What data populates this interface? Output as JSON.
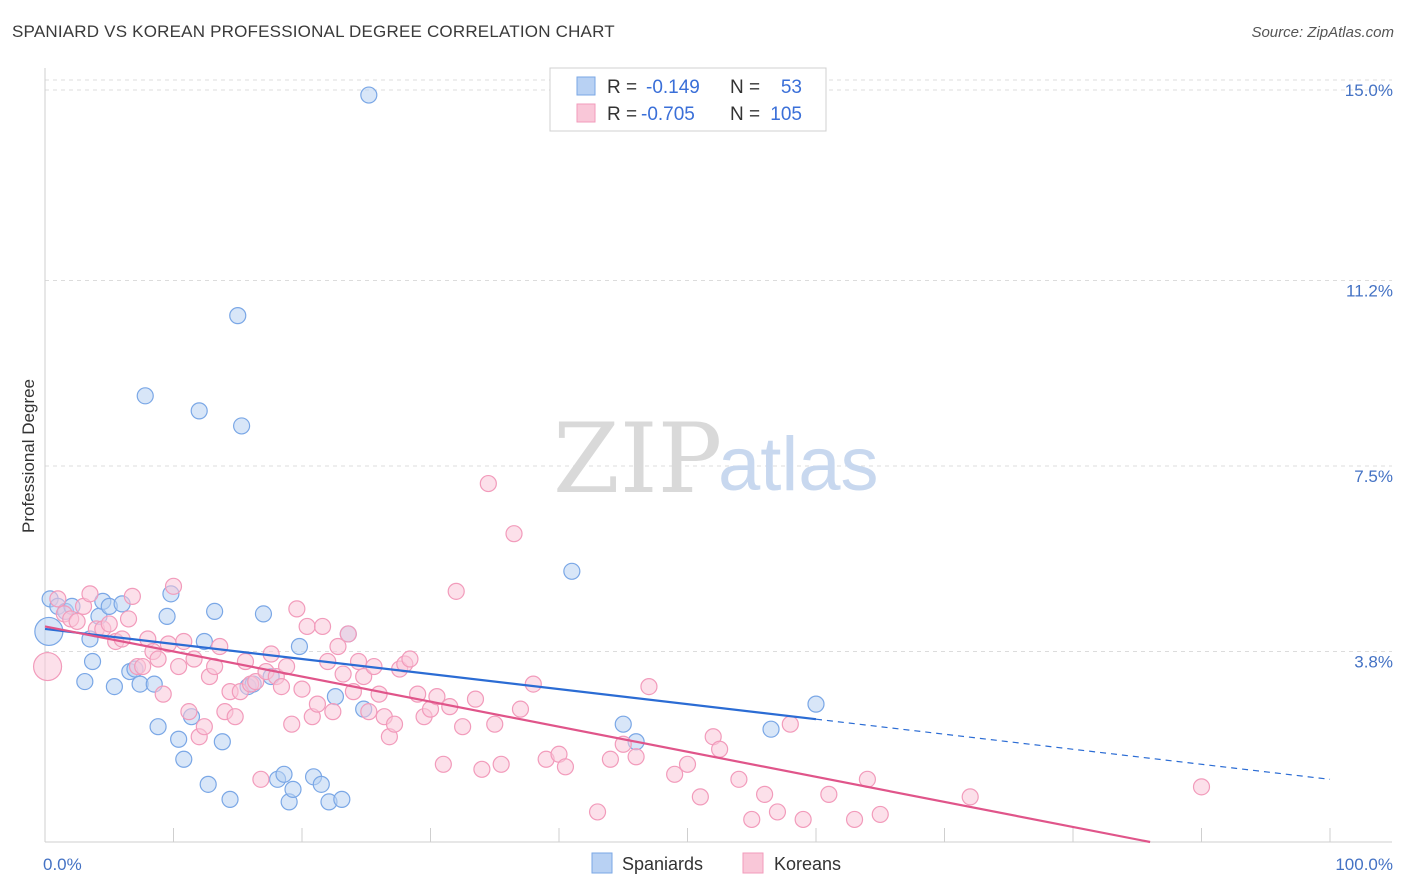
{
  "header": {
    "title": "SPANIARD VS KOREAN PROFESSIONAL DEGREE CORRELATION CHART",
    "source": "Source: ZipAtlas.com"
  },
  "watermark": {
    "zip": "ZIP",
    "atlas": "atlas"
  },
  "chart_data": {
    "type": "scatter",
    "title": "SPANIARD VS KOREAN PROFESSIONAL DEGREE CORRELATION CHART",
    "ylabel": "Professional Degree",
    "xlim": [
      0,
      100
    ],
    "ylim": [
      0,
      15.3
    ],
    "x_tick_labels": [
      {
        "value": 0,
        "label": "0.0%"
      },
      {
        "value": 100,
        "label": "100.0%"
      }
    ],
    "y_tick_labels": [
      {
        "value": 3.8,
        "label": "3.8%"
      },
      {
        "value": 7.5,
        "label": "7.5%"
      },
      {
        "value": 11.2,
        "label": "11.2%"
      },
      {
        "value": 15.0,
        "label": "15.0%"
      }
    ],
    "grid": true,
    "legend_position": "top-center",
    "series": [
      {
        "name": "Spaniards",
        "color": "#7aa7e6",
        "fill": "#b8d1f3",
        "line_color": "#2b6cd4",
        "R": "-0.149",
        "N": "53",
        "trend": {
          "x0": 0,
          "y0": 4.25,
          "x1": 60,
          "y1": 2.45,
          "dash_x1": 100,
          "dash_y1": 1.25
        },
        "points": [
          [
            0.3,
            4.2
          ],
          [
            0.4,
            4.85
          ],
          [
            1.0,
            4.7
          ],
          [
            1.6,
            4.6
          ],
          [
            2.1,
            4.7
          ],
          [
            3.1,
            3.2
          ],
          [
            3.5,
            4.05
          ],
          [
            3.7,
            3.6
          ],
          [
            4.2,
            4.5
          ],
          [
            4.5,
            4.8
          ],
          [
            5.0,
            4.7
          ],
          [
            5.4,
            3.1
          ],
          [
            6.0,
            4.75
          ],
          [
            6.6,
            3.4
          ],
          [
            7.0,
            3.45
          ],
          [
            7.4,
            3.15
          ],
          [
            7.8,
            8.9
          ],
          [
            8.5,
            3.15
          ],
          [
            8.8,
            2.3
          ],
          [
            9.5,
            4.5
          ],
          [
            9.8,
            4.95
          ],
          [
            10.4,
            2.05
          ],
          [
            10.8,
            1.65
          ],
          [
            11.4,
            2.5
          ],
          [
            12.0,
            8.6
          ],
          [
            12.4,
            4.0
          ],
          [
            12.7,
            1.15
          ],
          [
            13.2,
            4.6
          ],
          [
            13.8,
            2.0
          ],
          [
            14.4,
            0.85
          ],
          [
            15.0,
            10.5
          ],
          [
            15.3,
            8.3
          ],
          [
            15.8,
            3.1
          ],
          [
            16.2,
            3.15
          ],
          [
            17.0,
            4.55
          ],
          [
            17.6,
            3.3
          ],
          [
            18.1,
            1.25
          ],
          [
            18.6,
            1.35
          ],
          [
            19.0,
            0.8
          ],
          [
            19.3,
            1.05
          ],
          [
            19.8,
            3.9
          ],
          [
            20.9,
            1.3
          ],
          [
            21.5,
            1.15
          ],
          [
            22.1,
            0.8
          ],
          [
            22.6,
            2.9
          ],
          [
            23.1,
            0.85
          ],
          [
            23.6,
            4.15
          ],
          [
            24.8,
            2.65
          ],
          [
            25.2,
            14.9
          ],
          [
            41.0,
            5.4
          ],
          [
            45.0,
            2.35
          ],
          [
            46.0,
            2.0
          ],
          [
            56.5,
            2.25
          ],
          [
            60.0,
            2.75
          ]
        ]
      },
      {
        "name": "Koreans",
        "color": "#f29bbb",
        "fill": "#f9c7d8",
        "line_color": "#e0558a",
        "R": "-0.705",
        "N": "105",
        "trend": {
          "x0": 0,
          "y0": 4.3,
          "x1": 86,
          "y1": 0.0
        },
        "points": [
          [
            0.2,
            3.5
          ],
          [
            1.0,
            4.85
          ],
          [
            1.5,
            4.55
          ],
          [
            2.0,
            4.45
          ],
          [
            2.5,
            4.4
          ],
          [
            3.0,
            4.7
          ],
          [
            3.5,
            4.95
          ],
          [
            4.0,
            4.25
          ],
          [
            4.5,
            4.25
          ],
          [
            5.0,
            4.35
          ],
          [
            5.5,
            4.0
          ],
          [
            6.0,
            4.05
          ],
          [
            6.5,
            4.45
          ],
          [
            6.8,
            4.9
          ],
          [
            7.2,
            3.5
          ],
          [
            7.6,
            3.5
          ],
          [
            8.0,
            4.05
          ],
          [
            8.4,
            3.8
          ],
          [
            8.8,
            3.65
          ],
          [
            9.2,
            2.95
          ],
          [
            9.6,
            3.95
          ],
          [
            10.0,
            5.1
          ],
          [
            10.4,
            3.5
          ],
          [
            10.8,
            4.0
          ],
          [
            11.2,
            2.6
          ],
          [
            11.6,
            3.65
          ],
          [
            12.0,
            2.1
          ],
          [
            12.4,
            2.3
          ],
          [
            12.8,
            3.3
          ],
          [
            13.2,
            3.5
          ],
          [
            13.6,
            3.9
          ],
          [
            14.0,
            2.6
          ],
          [
            14.4,
            3.0
          ],
          [
            14.8,
            2.5
          ],
          [
            15.2,
            3.0
          ],
          [
            15.6,
            3.6
          ],
          [
            16.0,
            3.15
          ],
          [
            16.4,
            3.2
          ],
          [
            16.8,
            1.25
          ],
          [
            17.2,
            3.4
          ],
          [
            17.6,
            3.75
          ],
          [
            18.0,
            3.3
          ],
          [
            18.4,
            3.1
          ],
          [
            18.8,
            3.5
          ],
          [
            19.2,
            2.35
          ],
          [
            19.6,
            4.65
          ],
          [
            20.0,
            3.05
          ],
          [
            20.4,
            4.3
          ],
          [
            20.8,
            2.5
          ],
          [
            21.2,
            2.75
          ],
          [
            21.6,
            4.3
          ],
          [
            22.0,
            3.6
          ],
          [
            22.4,
            2.6
          ],
          [
            22.8,
            3.9
          ],
          [
            23.2,
            3.35
          ],
          [
            23.6,
            4.15
          ],
          [
            24.0,
            3.0
          ],
          [
            24.4,
            3.6
          ],
          [
            24.8,
            3.3
          ],
          [
            25.2,
            2.6
          ],
          [
            25.6,
            3.5
          ],
          [
            26.0,
            2.95
          ],
          [
            26.4,
            2.5
          ],
          [
            26.8,
            2.1
          ],
          [
            27.2,
            2.35
          ],
          [
            27.6,
            3.45
          ],
          [
            28.0,
            3.55
          ],
          [
            28.4,
            3.65
          ],
          [
            29.0,
            2.95
          ],
          [
            29.5,
            2.5
          ],
          [
            30.0,
            2.65
          ],
          [
            30.5,
            2.9
          ],
          [
            31.0,
            1.55
          ],
          [
            31.5,
            2.7
          ],
          [
            32.0,
            5.0
          ],
          [
            32.5,
            2.3
          ],
          [
            33.5,
            2.85
          ],
          [
            34.0,
            1.45
          ],
          [
            34.5,
            7.15
          ],
          [
            35.0,
            2.35
          ],
          [
            35.5,
            1.55
          ],
          [
            36.5,
            6.15
          ],
          [
            37.0,
            2.65
          ],
          [
            38.0,
            3.15
          ],
          [
            39.0,
            1.65
          ],
          [
            40.0,
            1.75
          ],
          [
            40.5,
            1.5
          ],
          [
            43.0,
            0.6
          ],
          [
            44.0,
            1.65
          ],
          [
            45.0,
            1.95
          ],
          [
            46.0,
            1.7
          ],
          [
            47.0,
            3.1
          ],
          [
            49.0,
            1.35
          ],
          [
            50.0,
            1.55
          ],
          [
            51.0,
            0.9
          ],
          [
            52.0,
            2.1
          ],
          [
            52.5,
            1.85
          ],
          [
            54.0,
            1.25
          ],
          [
            55.0,
            0.45
          ],
          [
            56.0,
            0.95
          ],
          [
            57.0,
            0.6
          ],
          [
            58.0,
            2.35
          ],
          [
            59.0,
            0.45
          ],
          [
            61.0,
            0.95
          ],
          [
            63.0,
            0.45
          ],
          [
            64.0,
            1.25
          ],
          [
            72.0,
            0.9
          ],
          [
            90.0,
            1.1
          ],
          [
            65.0,
            0.55
          ]
        ]
      }
    ]
  },
  "legend": {
    "r_label": "R = ",
    "n_label": "N = ",
    "items": [
      {
        "series": "Spaniards",
        "r": "-0.149",
        "n": "53"
      },
      {
        "series": "Koreans",
        "r": "-0.705",
        "n": "105"
      }
    ]
  },
  "bottom_legend": [
    {
      "label": "Spaniards"
    },
    {
      "label": "Koreans"
    }
  ]
}
